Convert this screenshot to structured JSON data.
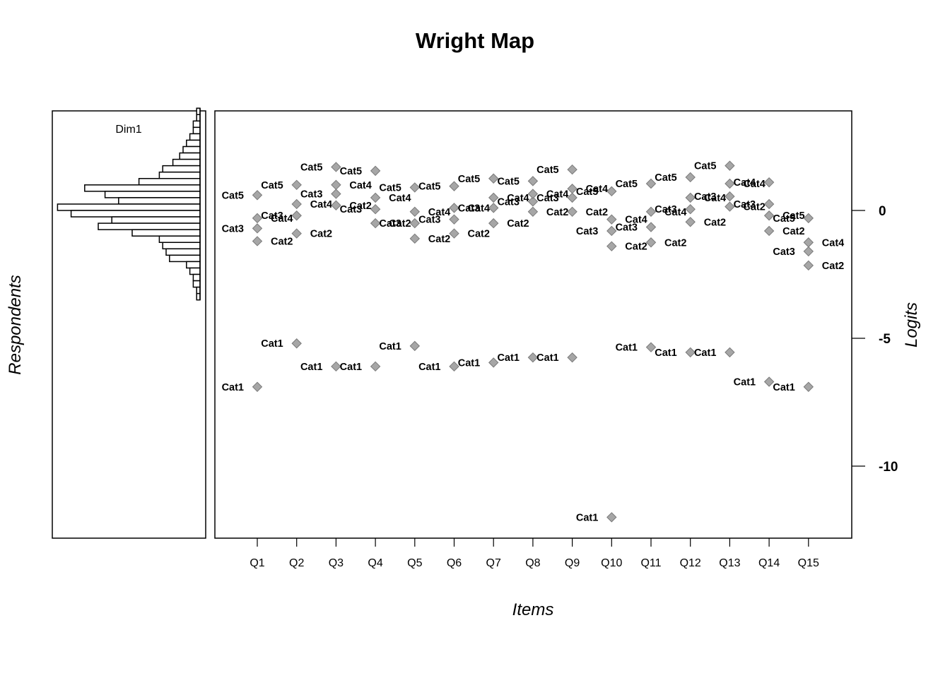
{
  "chart_data": {
    "type": "scatter",
    "title": "Wright Map",
    "xlabel": "Items",
    "ylabel": "Logits",
    "left_label": "Respondents",
    "dimension_label": "Dim1",
    "ylim": [
      -12.8,
      3.9
    ],
    "yticks": [
      0,
      -5,
      -10
    ],
    "ytick_labels": [
      "0",
      "-5",
      "-10"
    ],
    "categories": [
      "Q1",
      "Q2",
      "Q3",
      "Q4",
      "Q5",
      "Q6",
      "Q7",
      "Q8",
      "Q9",
      "Q10",
      "Q11",
      "Q12",
      "Q13",
      "Q14",
      "Q15"
    ],
    "marker_color": "#a6a6a6",
    "points": [
      {
        "item": "Q1",
        "label": "Cat1",
        "y": -6.9,
        "side": "left"
      },
      {
        "item": "Q1",
        "label": "Cat2",
        "y": -1.2,
        "side": "right"
      },
      {
        "item": "Q1",
        "label": "Cat3",
        "y": -0.7,
        "side": "left"
      },
      {
        "item": "Q1",
        "label": "Cat4",
        "y": -0.3,
        "side": "right"
      },
      {
        "item": "Q1",
        "label": "Cat5",
        "y": 0.6,
        "side": "left"
      },
      {
        "item": "Q2",
        "label": "Cat1",
        "y": -5.2,
        "side": "left"
      },
      {
        "item": "Q2",
        "label": "Cat2",
        "y": -0.9,
        "side": "right"
      },
      {
        "item": "Q2",
        "label": "Cat3",
        "y": -0.2,
        "side": "left"
      },
      {
        "item": "Q2",
        "label": "Cat4",
        "y": 0.25,
        "side": "right"
      },
      {
        "item": "Q2",
        "label": "Cat5",
        "y": 1.0,
        "side": "left"
      },
      {
        "item": "Q3",
        "label": "Cat1",
        "y": -6.1,
        "side": "left"
      },
      {
        "item": "Q3",
        "label": "Cat2",
        "y": 0.2,
        "side": "right"
      },
      {
        "item": "Q3",
        "label": "Cat3",
        "y": 0.65,
        "side": "left"
      },
      {
        "item": "Q3",
        "label": "Cat4",
        "y": 1.0,
        "side": "right"
      },
      {
        "item": "Q3",
        "label": "Cat5",
        "y": 1.7,
        "side": "left"
      },
      {
        "item": "Q4",
        "label": "Cat1",
        "y": -6.1,
        "side": "left"
      },
      {
        "item": "Q4",
        "label": "Cat2",
        "y": -0.5,
        "side": "right"
      },
      {
        "item": "Q4",
        "label": "Cat3",
        "y": 0.05,
        "side": "left"
      },
      {
        "item": "Q4",
        "label": "Cat4",
        "y": 0.5,
        "side": "right"
      },
      {
        "item": "Q4",
        "label": "Cat5",
        "y": 1.55,
        "side": "left"
      },
      {
        "item": "Q5",
        "label": "Cat1",
        "y": -5.3,
        "side": "left"
      },
      {
        "item": "Q5",
        "label": "Cat2",
        "y": -1.1,
        "side": "right"
      },
      {
        "item": "Q5",
        "label": "Cat3",
        "y": -0.5,
        "side": "left"
      },
      {
        "item": "Q5",
        "label": "Cat4",
        "y": -0.05,
        "side": "right"
      },
      {
        "item": "Q5",
        "label": "Cat5",
        "y": 0.9,
        "side": "left"
      },
      {
        "item": "Q6",
        "label": "Cat1",
        "y": -6.1,
        "side": "left"
      },
      {
        "item": "Q6",
        "label": "Cat2",
        "y": -0.9,
        "side": "right"
      },
      {
        "item": "Q6",
        "label": "Cat3",
        "y": -0.35,
        "side": "left"
      },
      {
        "item": "Q6",
        "label": "Cat4",
        "y": 0.1,
        "side": "right"
      },
      {
        "item": "Q6",
        "label": "Cat5",
        "y": 0.95,
        "side": "left"
      },
      {
        "item": "Q7",
        "label": "Cat1",
        "y": -5.95,
        "side": "left"
      },
      {
        "item": "Q7",
        "label": "Cat2",
        "y": -0.5,
        "side": "right"
      },
      {
        "item": "Q7",
        "label": "Cat3",
        "y": 0.1,
        "side": "left"
      },
      {
        "item": "Q7",
        "label": "Cat4",
        "y": 0.5,
        "side": "right"
      },
      {
        "item": "Q7",
        "label": "Cat5",
        "y": 1.25,
        "side": "left"
      },
      {
        "item": "Q8",
        "label": "Cat1",
        "y": -5.75,
        "side": "left"
      },
      {
        "item": "Q8",
        "label": "Cat2",
        "y": -0.05,
        "side": "right"
      },
      {
        "item": "Q8",
        "label": "Cat3",
        "y": 0.35,
        "side": "left"
      },
      {
        "item": "Q8",
        "label": "Cat4",
        "y": 0.65,
        "side": "right"
      },
      {
        "item": "Q8",
        "label": "Cat5",
        "y": 1.15,
        "side": "left"
      },
      {
        "item": "Q9",
        "label": "Cat1",
        "y": -5.75,
        "side": "left"
      },
      {
        "item": "Q9",
        "label": "Cat2",
        "y": -0.05,
        "side": "right"
      },
      {
        "item": "Q9",
        "label": "Cat3",
        "y": 0.5,
        "side": "left"
      },
      {
        "item": "Q9",
        "label": "Cat4",
        "y": 0.85,
        "side": "right"
      },
      {
        "item": "Q9",
        "label": "Cat5",
        "y": 1.6,
        "side": "left"
      },
      {
        "item": "Q10",
        "label": "Cat1",
        "y": -12.0,
        "side": "left"
      },
      {
        "item": "Q10",
        "label": "Cat2",
        "y": -1.4,
        "side": "right"
      },
      {
        "item": "Q10",
        "label": "Cat3",
        "y": -0.8,
        "side": "left"
      },
      {
        "item": "Q10",
        "label": "Cat4",
        "y": -0.35,
        "side": "right"
      },
      {
        "item": "Q10",
        "label": "Cat5",
        "y": 0.75,
        "side": "left"
      },
      {
        "item": "Q11",
        "label": "Cat1",
        "y": -5.35,
        "side": "left"
      },
      {
        "item": "Q11",
        "label": "Cat2",
        "y": -1.25,
        "side": "right"
      },
      {
        "item": "Q11",
        "label": "Cat3",
        "y": -0.65,
        "side": "left"
      },
      {
        "item": "Q11",
        "label": "Cat4",
        "y": -0.05,
        "side": "right"
      },
      {
        "item": "Q11",
        "label": "Cat5",
        "y": 1.05,
        "side": "left"
      },
      {
        "item": "Q12",
        "label": "Cat1",
        "y": -5.55,
        "side": "left"
      },
      {
        "item": "Q12",
        "label": "Cat2",
        "y": -0.45,
        "side": "right"
      },
      {
        "item": "Q12",
        "label": "Cat3",
        "y": 0.05,
        "side": "left"
      },
      {
        "item": "Q12",
        "label": "Cat4",
        "y": 0.5,
        "side": "right"
      },
      {
        "item": "Q12",
        "label": "Cat5",
        "y": 1.3,
        "side": "left"
      },
      {
        "item": "Q13",
        "label": "Cat1",
        "y": -5.55,
        "side": "left"
      },
      {
        "item": "Q13",
        "label": "Cat2",
        "y": 0.15,
        "side": "right"
      },
      {
        "item": "Q13",
        "label": "Cat3",
        "y": 0.55,
        "side": "left"
      },
      {
        "item": "Q13",
        "label": "Cat4",
        "y": 1.05,
        "side": "right"
      },
      {
        "item": "Q13",
        "label": "Cat5",
        "y": 1.75,
        "side": "left"
      },
      {
        "item": "Q14",
        "label": "Cat1",
        "y": -6.7,
        "side": "left"
      },
      {
        "item": "Q14",
        "label": "Cat2",
        "y": -0.8,
        "side": "right"
      },
      {
        "item": "Q14",
        "label": "Cat3",
        "y": 0.25,
        "side": "left"
      },
      {
        "item": "Q14",
        "label": "Cat4",
        "y": 1.1,
        "side": "left"
      },
      {
        "item": "Q14",
        "label": "Cat5",
        "y": -0.2,
        "side": "right"
      },
      {
        "item": "Q15",
        "label": "Cat1",
        "y": -6.9,
        "side": "left"
      },
      {
        "item": "Q15",
        "label": "Cat2",
        "y": -2.15,
        "side": "right"
      },
      {
        "item": "Q15",
        "label": "Cat3",
        "y": -1.6,
        "side": "left"
      },
      {
        "item": "Q15",
        "label": "Cat4",
        "y": -1.25,
        "side": "right"
      },
      {
        "item": "Q15",
        "label": "Cat5",
        "y": -0.3,
        "side": "left"
      }
    ],
    "respondent_distribution": {
      "type": "histogram",
      "bin_width": 0.25,
      "bin_starts": [
        3.75,
        3.5,
        3.25,
        3.0,
        2.75,
        2.5,
        2.25,
        2.0,
        1.75,
        1.5,
        1.25,
        1.0,
        0.75,
        0.5,
        0.25,
        0.0,
        -0.25,
        -0.5,
        -0.75,
        -1.0,
        -1.25,
        -1.5,
        -1.75,
        -2.0,
        -2.25,
        -2.5,
        -2.75,
        -3.0,
        -3.25,
        -3.5
      ],
      "counts": [
        0.5,
        0.5,
        1,
        1,
        1.5,
        2,
        2.5,
        3,
        4,
        5.5,
        6,
        9,
        17,
        14,
        12,
        21,
        19,
        13,
        15,
        10,
        6,
        5.5,
        5,
        4.5,
        2,
        1.5,
        1,
        1,
        0.5,
        0.5
      ]
    }
  }
}
